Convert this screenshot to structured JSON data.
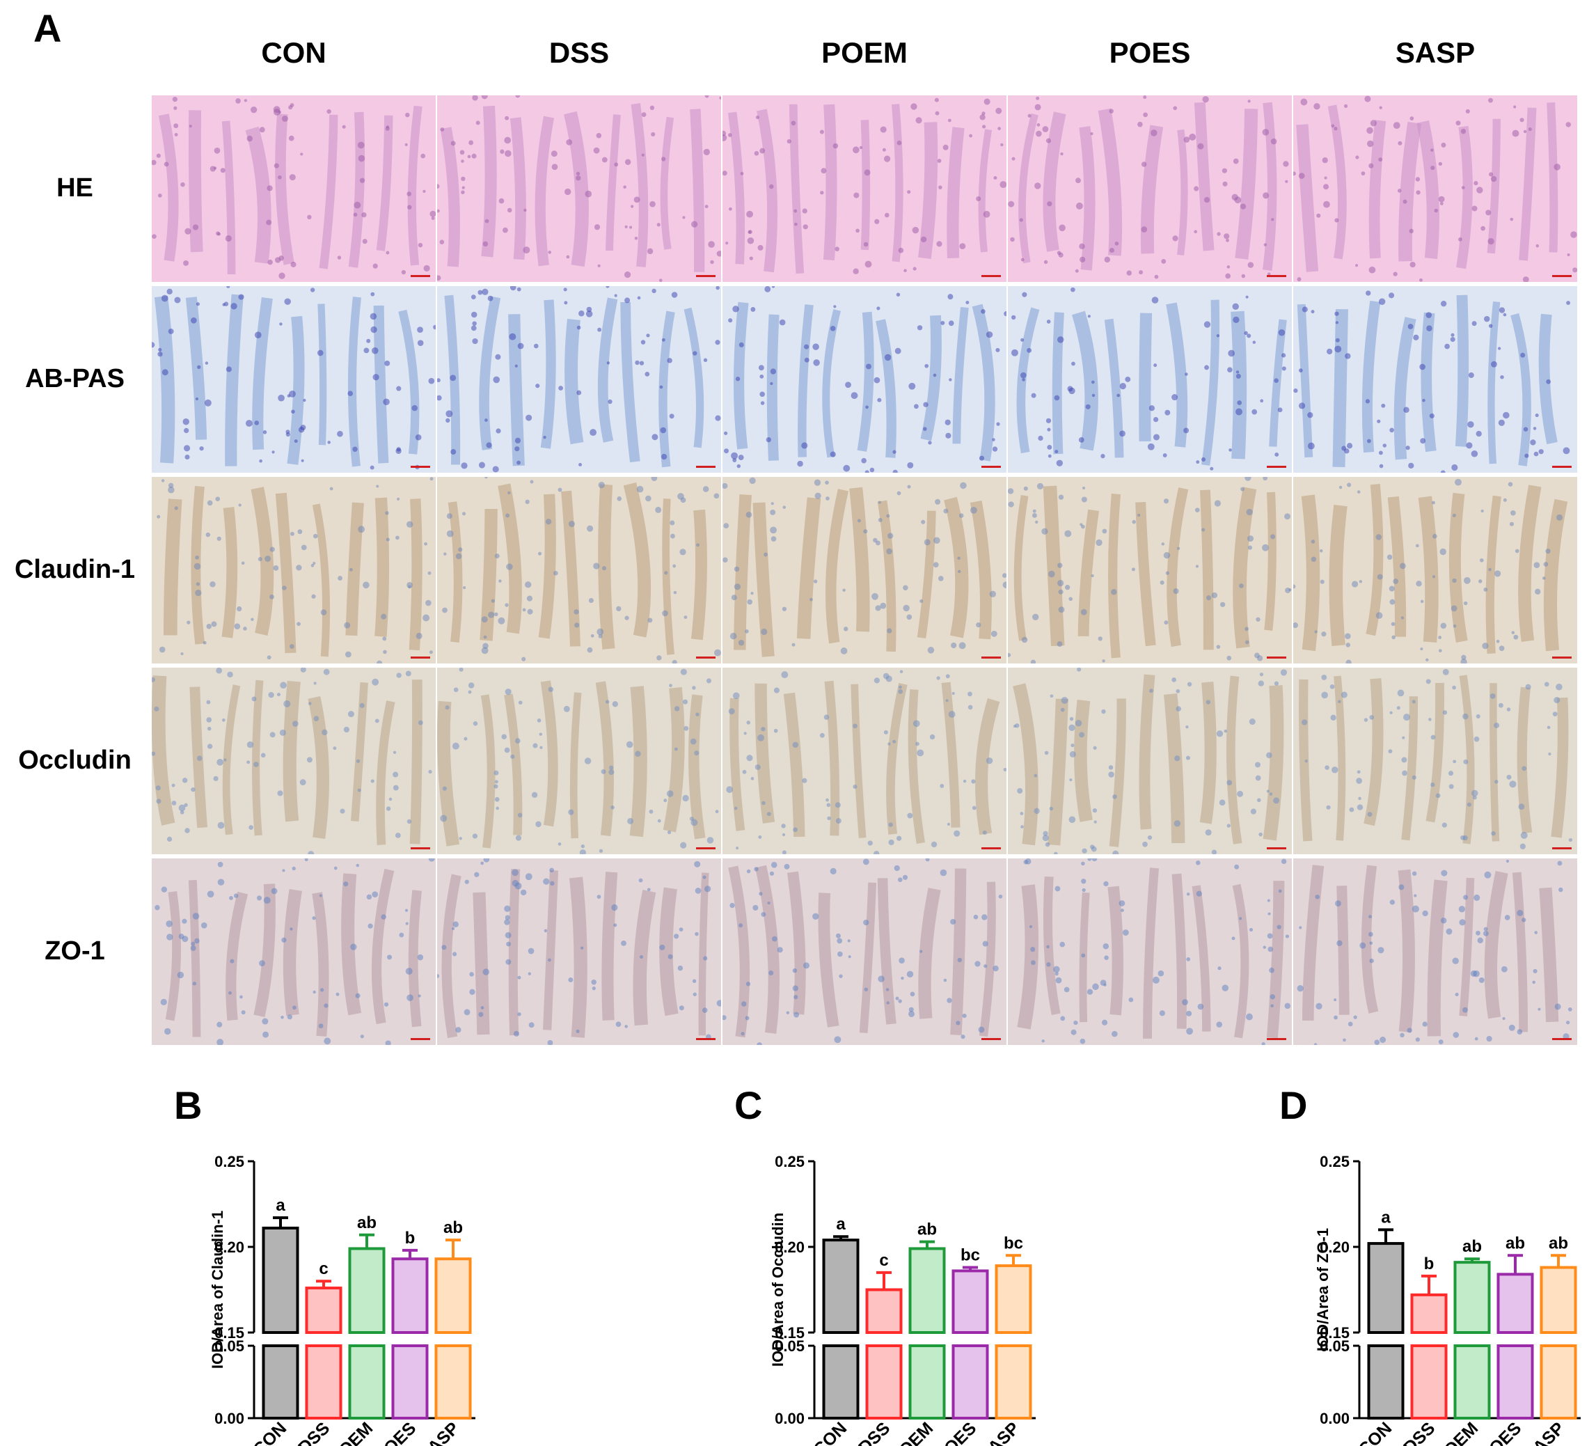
{
  "panel_a": {
    "letter": "A",
    "groups": [
      "CON",
      "DSS",
      "POEM",
      "POES",
      "SASP"
    ],
    "stains": [
      "HE",
      "AB-PAS",
      "Claudin-1",
      "Occludin",
      "ZO-1"
    ],
    "stain_styles": [
      {
        "base": "#f3c9e4",
        "tint": "#c98fc8",
        "dot": "#9b5aa6"
      },
      {
        "base": "#dde6f2",
        "tint": "#7f9fd6",
        "dot": "#3a3fb0"
      },
      {
        "base": "#e6dccd",
        "tint": "#b9a07e",
        "dot": "#6e86b8"
      },
      {
        "base": "#e3dcd0",
        "tint": "#baa689",
        "dot": "#6f8cc0"
      },
      {
        "base": "#e2d6d8",
        "tint": "#b59aa4",
        "dot": "#5f7fc0"
      }
    ]
  },
  "charts": [
    {
      "letter": "B",
      "chart_data": {
        "type": "bar",
        "categories": [
          "CON",
          "DSS",
          "POEM",
          "POES",
          "SASP"
        ],
        "values": [
          0.211,
          0.176,
          0.199,
          0.193,
          0.193
        ],
        "errors": [
          0.006,
          0.004,
          0.008,
          0.005,
          0.011
        ],
        "significance": [
          "a",
          "c",
          "ab",
          "b",
          "ab"
        ],
        "title": "",
        "xlabel": "",
        "ylabel": "IOD/Area of Claudin-1",
        "axis_break": {
          "lower": [
            0.0,
            0.05
          ],
          "upper": [
            0.15,
            0.25
          ]
        },
        "yticks": [
          "0.00",
          "0.05",
          "0.15",
          "0.20",
          "0.25"
        ]
      }
    },
    {
      "letter": "C",
      "chart_data": {
        "type": "bar",
        "categories": [
          "CON",
          "DSS",
          "POEM",
          "POES",
          "SASP"
        ],
        "values": [
          0.204,
          0.175,
          0.199,
          0.186,
          0.189
        ],
        "errors": [
          0.002,
          0.01,
          0.004,
          0.002,
          0.006
        ],
        "significance": [
          "a",
          "c",
          "ab",
          "bc",
          "bc"
        ],
        "title": "",
        "xlabel": "",
        "ylabel": "IOD/Area of Occludin",
        "axis_break": {
          "lower": [
            0.0,
            0.05
          ],
          "upper": [
            0.15,
            0.25
          ]
        },
        "yticks": [
          "0.00",
          "0.05",
          "0.15",
          "0.20",
          "0.25"
        ]
      }
    },
    {
      "letter": "D",
      "chart_data": {
        "type": "bar",
        "categories": [
          "CON",
          "DSS",
          "POEM",
          "POES",
          "SASP"
        ],
        "values": [
          0.202,
          0.172,
          0.191,
          0.184,
          0.188
        ],
        "errors": [
          0.008,
          0.011,
          0.002,
          0.011,
          0.007
        ],
        "significance": [
          "a",
          "b",
          "ab",
          "ab",
          "ab"
        ],
        "title": "",
        "xlabel": "",
        "ylabel": "IOD/Area of ZO-1",
        "axis_break": {
          "lower": [
            0.0,
            0.05
          ],
          "upper": [
            0.15,
            0.25
          ]
        },
        "yticks": [
          "0.00",
          "0.05",
          "0.15",
          "0.20",
          "0.25"
        ]
      }
    }
  ],
  "bar_colors": {
    "stroke": [
      "#000000",
      "#ff2a2a",
      "#1f9a3a",
      "#9a2aa8",
      "#ff8c1a"
    ],
    "fill": [
      "#b3b3b3",
      "#ffc2c2",
      "#c2ecc9",
      "#e5c2ec",
      "#ffe0c0"
    ]
  }
}
